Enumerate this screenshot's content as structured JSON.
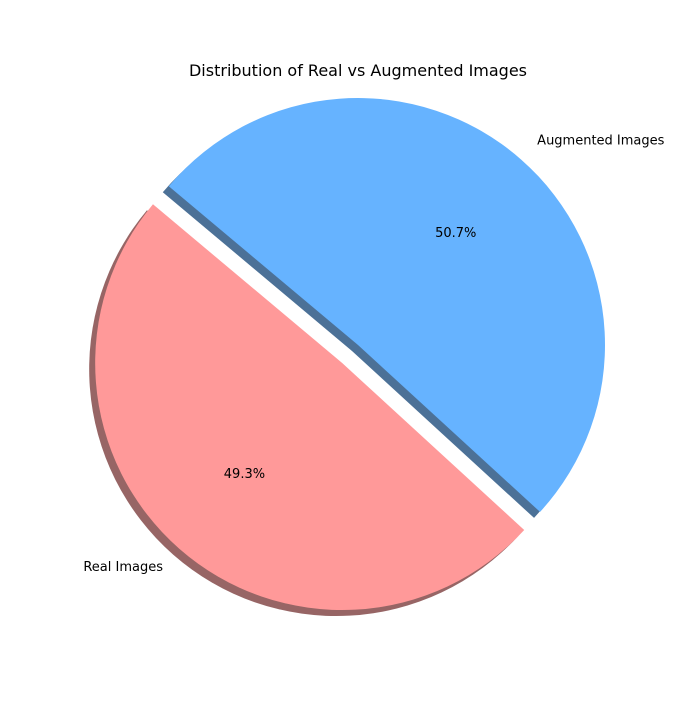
{
  "chart_data": {
    "type": "pie",
    "title": "Distribution of Real vs Augmented Images",
    "labels": [
      "Real Images",
      "Augmented Images"
    ],
    "values": [
      49.3,
      50.7
    ],
    "percent_labels": [
      "49.3%",
      "50.7%"
    ],
    "colors": [
      "#ff9999",
      "#66b3ff"
    ],
    "exploded": [
      true,
      false
    ],
    "shadow": true,
    "start_angle_degrees": 140,
    "legend": "none"
  }
}
